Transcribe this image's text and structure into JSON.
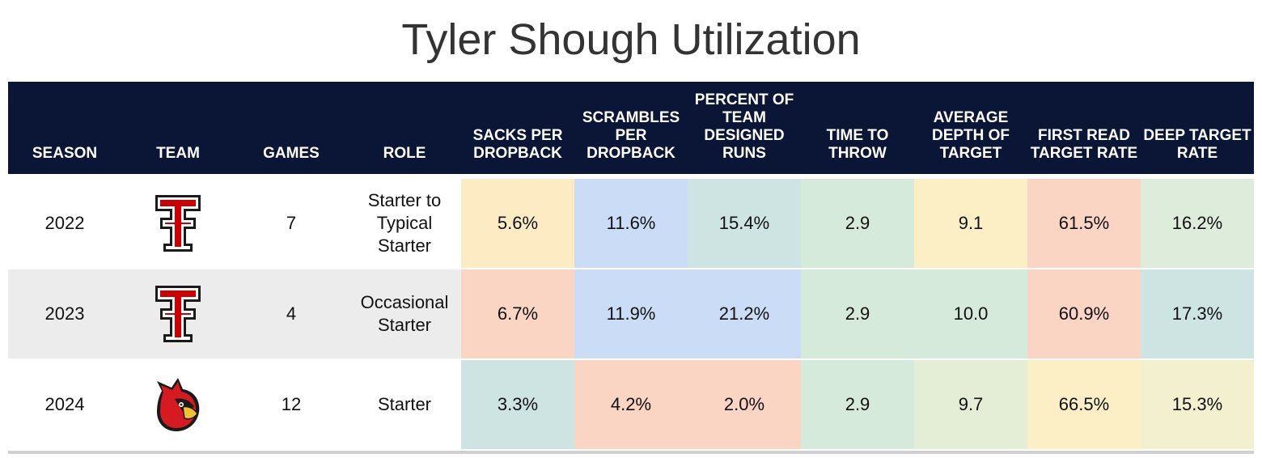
{
  "title": "Tyler Shough Utilization",
  "headers": [
    "SEASON",
    "TEAM",
    "GAMES",
    "ROLE",
    "SACKS PER DROPBACK",
    "SCRAMBLES PER DROPBACK",
    "PERCENT OF TEAM DESIGNED RUNS",
    "TIME TO THROW",
    "AVERAGE DEPTH OF TARGET",
    "FIRST READ TARGET RATE",
    "DEEP TARGET RATE"
  ],
  "rows": [
    {
      "season": "2022",
      "team_icon": "texas-tech-logo-icon",
      "games": "7",
      "role": "Starter to Typical Starter",
      "row_bg": "#ffffff",
      "stats": [
        {
          "value": "5.6%",
          "color": "#fdebc4"
        },
        {
          "value": "11.6%",
          "color": "#cbdcf7"
        },
        {
          "value": "15.4%",
          "color": "#cde4e3"
        },
        {
          "value": "2.9",
          "color": "#d6eadb"
        },
        {
          "value": "9.1",
          "color": "#fcefc6"
        },
        {
          "value": "61.5%",
          "color": "#fbd5c3"
        },
        {
          "value": "16.2%",
          "color": "#deecdc"
        }
      ]
    },
    {
      "season": "2023",
      "team_icon": "texas-tech-logo-icon",
      "games": "4",
      "role": "Occasional Starter",
      "row_bg": "#ececec",
      "stats": [
        {
          "value": "6.7%",
          "color": "#fbd5c3"
        },
        {
          "value": "11.9%",
          "color": "#cbdcf7"
        },
        {
          "value": "21.2%",
          "color": "#cbdcf7"
        },
        {
          "value": "2.9",
          "color": "#d6eadb"
        },
        {
          "value": "10.0",
          "color": "#d6eadb"
        },
        {
          "value": "60.9%",
          "color": "#fbd5c3"
        },
        {
          "value": "17.3%",
          "color": "#cde4e3"
        }
      ]
    },
    {
      "season": "2024",
      "team_icon": "louisville-cardinal-logo-icon",
      "games": "12",
      "role": "Starter",
      "row_bg": "#ffffff",
      "stats": [
        {
          "value": "3.3%",
          "color": "#cde4e3"
        },
        {
          "value": "4.2%",
          "color": "#fbd5c3"
        },
        {
          "value": "2.0%",
          "color": "#fbd5c3"
        },
        {
          "value": "2.9",
          "color": "#d6eadb"
        },
        {
          "value": "9.7",
          "color": "#e4edd5"
        },
        {
          "value": "66.5%",
          "color": "#fcefc6"
        },
        {
          "value": "15.3%",
          "color": "#f2f0cf"
        }
      ]
    }
  ]
}
